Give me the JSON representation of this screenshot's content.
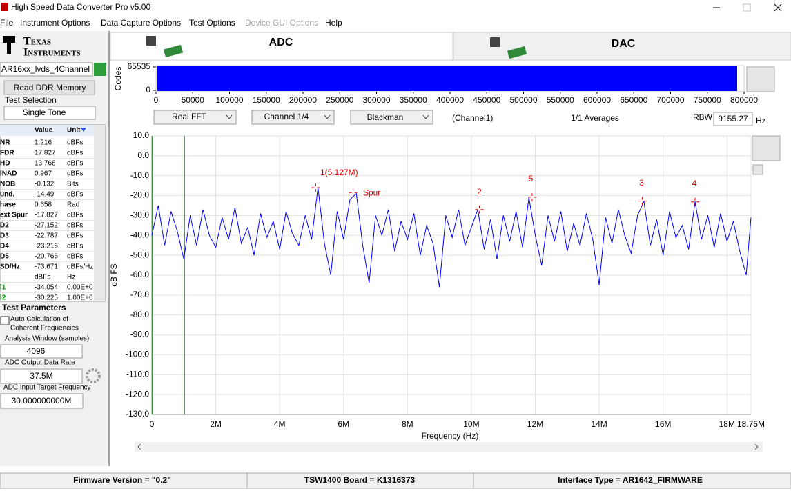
{
  "window": {
    "title": "High Speed Data Converter Pro v5.00"
  },
  "menu": [
    "File",
    "Instrument Options",
    "Data Capture Options",
    "Test Options",
    "Device GUI Options",
    "Help"
  ],
  "logo": {
    "line1": "Texas",
    "line2": "Instruments"
  },
  "sidebar": {
    "device": "AR16xx_lvds_4Channel",
    "read_button": "Read DDR Memory",
    "test_selection_label": "Test Selection",
    "test_selection": "Single Tone",
    "columns": [
      "Value",
      "Unit"
    ],
    "rows": [
      [
        "NR",
        "1.216",
        "dBFs"
      ],
      [
        "FDR",
        "17.827",
        "dBFs"
      ],
      [
        "HD",
        "13.768",
        "dBFs"
      ],
      [
        "INAD",
        "0.967",
        "dBFs"
      ],
      [
        "NOB",
        "-0.132",
        "Bits"
      ],
      [
        "und.",
        "-14.49",
        "dBFs"
      ],
      [
        "hase",
        "0.658",
        "Rad"
      ],
      [
        "ext Spur",
        "-17.827",
        "dBFs"
      ],
      [
        "D2",
        "-27.152",
        "dBFs"
      ],
      [
        "D3",
        "-22.787",
        "dBFs"
      ],
      [
        "D4",
        "-23.216",
        "dBFs"
      ],
      [
        "D5",
        "-20.766",
        "dBFs"
      ],
      [
        "SD/Hz",
        "-73.671",
        "dBFs/Hz"
      ],
      [
        null,
        "dBFs",
        "Hz"
      ],
      [
        "l1",
        "-34.054",
        "0.00E+0"
      ],
      [
        "l2",
        "-30.225",
        "1.00E+0"
      ]
    ],
    "test_parameters": "Test Parameters",
    "auto_calc_line1": "Auto Calculation of",
    "auto_calc_line2": "Coherent Frequencies",
    "analysis_window_label": "Analysis Window (samples)",
    "analysis_window": "4096",
    "output_rate_label": "ADC Output Data Rate",
    "output_rate": "37.5M",
    "target_freq_label": "ADC Input Target Frequency",
    "target_freq": "30.000000000M"
  },
  "tabs": [
    "ADC",
    "DAC"
  ],
  "controls": {
    "fft_type": "Real FFT",
    "channel": "Channel 1/4",
    "window": "Blackman",
    "channel_label": "(Channel1)",
    "averages": "1/1 Averages",
    "rbw_label": "RBW",
    "rbw": "9155.27",
    "rbw_unit": "Hz"
  },
  "status_bar": [
    "Firmware Version = \"0.2\"",
    "TSW1400 Board = K1316373",
    "Interface Type = AR1642_FIRMWARE"
  ],
  "chart_data": [
    {
      "type": "codes",
      "y_label": "Codes",
      "xlim": [
        0,
        800000
      ],
      "ylim": [
        0,
        65535
      ],
      "yticks": [
        0,
        65535
      ],
      "xticks": [
        0,
        50000,
        100000,
        150000,
        200000,
        250000,
        300000,
        350000,
        400000,
        450000,
        500000,
        550000,
        600000,
        650000,
        700000,
        750000,
        800000
      ],
      "color": "#0000ff"
    },
    {
      "type": "line",
      "x_label": "Frequency (Hz)",
      "y_label": "dB FS",
      "xlim": [
        0,
        18750000
      ],
      "ylim": [
        -130,
        10
      ],
      "grid": true,
      "xticks": [
        0,
        {
          "value": 2000000,
          "label": "2M"
        },
        {
          "value": 4000000,
          "label": "4M"
        },
        {
          "value": 6000000,
          "label": "6M"
        },
        {
          "value": 8000000,
          "label": "8M"
        },
        {
          "value": 10000000,
          "label": "10M"
        },
        {
          "value": 12000000,
          "label": "12M"
        },
        {
          "value": 14000000,
          "label": "14M"
        },
        {
          "value": 16000000,
          "label": "16M"
        },
        {
          "value": 18000000,
          "label": "18M"
        },
        {
          "value": 18750000,
          "label": "18.75M"
        }
      ],
      "yticks": [
        {
          "value": 10,
          "label": "10.0"
        },
        {
          "value": 0,
          "label": "0.0"
        },
        {
          "value": -10,
          "label": "-10.0"
        },
        {
          "value": -20,
          "label": "-20.0"
        },
        {
          "value": -30,
          "label": "-30.0"
        },
        {
          "value": -40,
          "label": "-40.0"
        },
        {
          "value": -50,
          "label": "-50.0"
        },
        {
          "value": -60,
          "label": "-60.0"
        },
        {
          "value": -70,
          "label": "-70.0"
        },
        {
          "value": -80,
          "label": "-80.0"
        },
        {
          "value": -90,
          "label": "-90.0"
        },
        {
          "value": -100,
          "label": "-100.0"
        },
        {
          "value": -110,
          "label": "-110.0"
        },
        {
          "value": -120,
          "label": "-120.0"
        },
        {
          "value": -130,
          "label": "-130.0"
        }
      ],
      "x": [
        0,
        200000,
        400000,
        600000,
        800000,
        1000000,
        1200000,
        1400000,
        1600000,
        1800000,
        2000000,
        2200000,
        2400000,
        2600000,
        2800000,
        3000000,
        3200000,
        3400000,
        3600000,
        3800000,
        4000000,
        4200000,
        4400000,
        4600000,
        4800000,
        5000000,
        5200000,
        5400000,
        5600000,
        5800000,
        6000000,
        6200000,
        6400000,
        6600000,
        6800000,
        7000000,
        7200000,
        7400000,
        7600000,
        7800000,
        8000000,
        8200000,
        8400000,
        8600000,
        8800000,
        9000000,
        9200000,
        9400000,
        9600000,
        9800000,
        10000000,
        10200000,
        10400000,
        10600000,
        10800000,
        11000000,
        11200000,
        11400000,
        11600000,
        11800000,
        12000000,
        12200000,
        12400000,
        12600000,
        12800000,
        13000000,
        13200000,
        13400000,
        13600000,
        13800000,
        14000000,
        14200000,
        14400000,
        14600000,
        14800000,
        15000000,
        15200000,
        15400000,
        15600000,
        15800000,
        16000000,
        16200000,
        16400000,
        16600000,
        16800000,
        17000000,
        17200000,
        17400000,
        17600000,
        17800000,
        18000000,
        18200000,
        18400000,
        18600000,
        18750000
      ],
      "series": [
        {
          "color": "#0000ff",
          "values": [
            -40,
            -25,
            -45,
            -28,
            -38,
            -52,
            -30,
            -45,
            -27,
            -40,
            -46,
            -31,
            -42,
            -26,
            -44,
            -36,
            -50,
            -29,
            -41,
            -33,
            -47,
            -28,
            -39,
            -45,
            -30,
            -42,
            -16,
            -44,
            -60,
            -28,
            -42,
            -22,
            -19,
            -45,
            -64,
            -30,
            -40,
            -27,
            -48,
            -33,
            -42,
            -29,
            -50,
            -35,
            -44,
            -66,
            -30,
            -41,
            -27,
            -45,
            -36,
            -27,
            -47,
            -32,
            -52,
            -30,
            -43,
            -28,
            -46,
            -21,
            -40,
            -55,
            -30,
            -43,
            -28,
            -48,
            -34,
            -45,
            -29,
            -42,
            -65,
            -31,
            -44,
            -27,
            -40,
            -49,
            -30,
            -23,
            -45,
            -32,
            -50,
            -28,
            -41,
            -35,
            -47,
            -23,
            -42,
            -30,
            -46,
            -29,
            -43,
            -33,
            -48,
            -60,
            -31
          ]
        }
      ],
      "cursors": [
        0,
        1000000
      ],
      "cursor_color": "#00a000",
      "annotations": [
        {
          "label": "1(5.127M)",
          "x": 5127000,
          "y": -16
        },
        {
          "label": "Spur",
          "x": 6300000,
          "y": -18.5
        },
        {
          "label": "2",
          "x": 10250000,
          "y": -27
        },
        {
          "label": "5",
          "x": 11900000,
          "y": -20.8
        },
        {
          "label": "3",
          "x": 15350000,
          "y": -22.8
        },
        {
          "label": "4",
          "x": 17000000,
          "y": -23.2
        }
      ]
    }
  ]
}
